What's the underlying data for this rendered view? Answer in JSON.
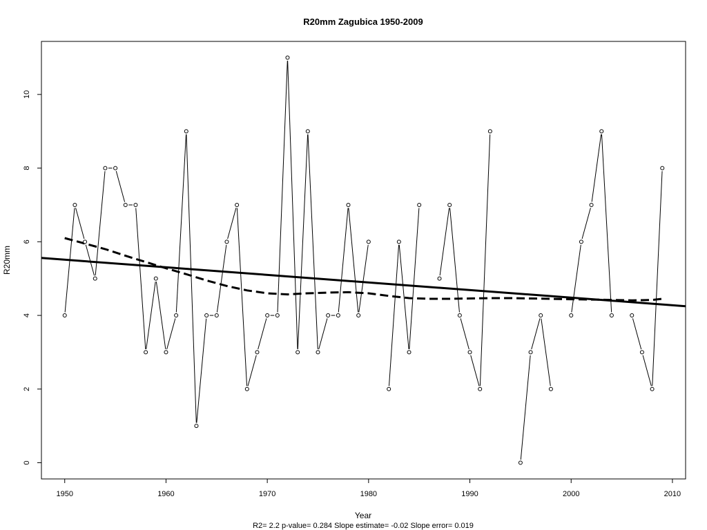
{
  "chart_data": {
    "type": "line",
    "title": "R20mm   Zagubica 1950-2009",
    "xlabel": "Year",
    "ylabel": "R20mm",
    "footer": "R2= 2.2  p-value= 0.284  Slope estimate= -0.02  Slope error= 0.019",
    "xlim": [
      1947.7,
      2011.3
    ],
    "ylim": [
      -0.44,
      11.44
    ],
    "x_ticks": [
      1950,
      1960,
      1970,
      1980,
      1990,
      2000,
      2010
    ],
    "y_ticks": [
      0,
      2,
      4,
      6,
      8,
      10
    ],
    "grid": false,
    "series": [
      {
        "style": "points-and-line",
        "x": [
          1950,
          1951,
          1952,
          1953,
          1954,
          1955,
          1956,
          1957,
          1958,
          1959,
          1960,
          1961,
          1962,
          1963,
          1964,
          1965,
          1966,
          1967,
          1968,
          1969,
          1970,
          1971,
          1972,
          1973,
          1974,
          1975,
          1976,
          1977,
          1978,
          1979,
          1980,
          1982,
          1983,
          1984,
          1985,
          1987,
          1988,
          1989,
          1990,
          1991,
          1992,
          1995,
          1996,
          1997,
          1998,
          2000,
          2001,
          2002,
          2003,
          2004,
          2006,
          2007,
          2008,
          2009
        ],
        "y": [
          4,
          7,
          6,
          5,
          8,
          8,
          7,
          7,
          3,
          5,
          3,
          4,
          9,
          1,
          4,
          4,
          6,
          7,
          2,
          3,
          4,
          4,
          11,
          3,
          9,
          3,
          4,
          4,
          7,
          4,
          6,
          2,
          6,
          3,
          7,
          5,
          7,
          4,
          3,
          2,
          9,
          0,
          3,
          4,
          2,
          4,
          6,
          7,
          9,
          4,
          4,
          3,
          2,
          8
        ]
      },
      {
        "style": "linear-trend",
        "x": [
          1947.7,
          2011.3
        ],
        "y": [
          5.56,
          4.25
        ]
      },
      {
        "style": "smoothed-dashed",
        "x": [
          1950,
          1952,
          1954,
          1956,
          1958,
          1960,
          1962,
          1964,
          1966,
          1968,
          1970,
          1972,
          1974,
          1976,
          1978,
          1980,
          1982,
          1984,
          1986,
          1988,
          1990,
          1992,
          1994,
          1996,
          1998,
          2000,
          2002,
          2004,
          2006,
          2008,
          2009
        ],
        "y": [
          6.1,
          5.95,
          5.8,
          5.62,
          5.45,
          5.28,
          5.12,
          4.95,
          4.8,
          4.68,
          4.6,
          4.57,
          4.6,
          4.62,
          4.63,
          4.6,
          4.53,
          4.47,
          4.45,
          4.45,
          4.46,
          4.47,
          4.47,
          4.46,
          4.45,
          4.44,
          4.43,
          4.42,
          4.41,
          4.42,
          4.45
        ]
      }
    ]
  }
}
